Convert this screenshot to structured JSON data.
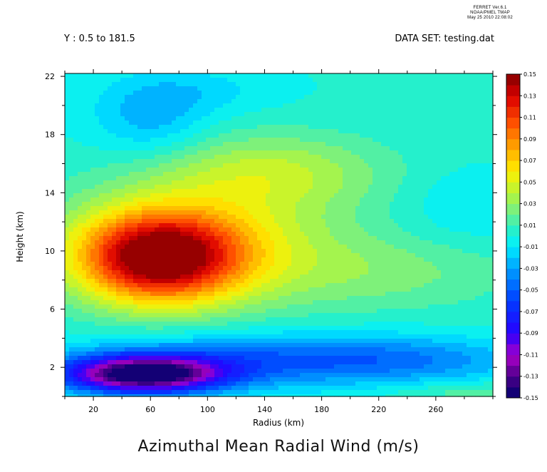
{
  "header": {
    "ferret_lines": [
      "FERRET Ver.6.1",
      "NOAA/PMEL TMAP",
      "May 25 2010 22:08:02"
    ],
    "left": "Y : 0.5 to 181.5",
    "right": "DATA SET: testing.dat"
  },
  "chart_data": {
    "type": "heatmap",
    "title": "Azimuthal Mean Radial Wind (m/s)",
    "xlabel": "Radius (km)",
    "ylabel": "Height (km)",
    "xlim": [
      0,
      300
    ],
    "ylim": [
      0,
      22.2
    ],
    "x_ticks": [
      20,
      60,
      100,
      140,
      180,
      220,
      260
    ],
    "y_ticks": [
      2,
      6,
      10,
      14,
      18,
      22
    ],
    "colorbar": {
      "min": -0.15,
      "max": 0.15,
      "step": 0.01,
      "labels": [
        "0.15",
        "0.13",
        "0.11",
        "0.09",
        "0.07",
        "0.05",
        "0.03",
        "0.01",
        "-0.01",
        "-0.03",
        "-0.05",
        "-0.07",
        "-0.09",
        "-0.11",
        "-0.13",
        "-0.15"
      ]
    },
    "features": [
      {
        "kind": "outflow maximum",
        "radius_km": 65,
        "height_km": 9.5,
        "value": 0.12
      },
      {
        "kind": "inflow minimum",
        "radius_km": 55,
        "height_km": 1.5,
        "value": -0.14
      },
      {
        "kind": "upper inflow",
        "radius_km": 60,
        "height_km": 19,
        "value": -0.02
      },
      {
        "kind": "secondary outflow",
        "radius_km": 145,
        "height_km": 15.5,
        "value": 0.04
      }
    ]
  }
}
